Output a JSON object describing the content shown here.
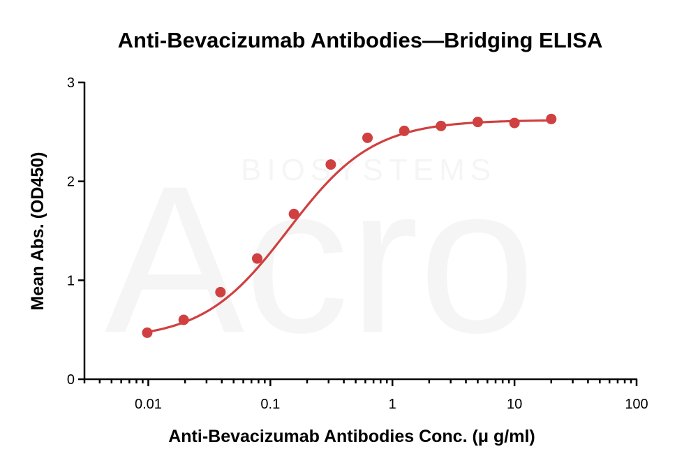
{
  "watermark": {
    "brand": "Acro",
    "subtitle": "BIOSYSTEMS"
  },
  "chart_data": {
    "type": "scatter",
    "title": "Anti-Bevacizumab Antibodies—Bridging ELISA",
    "xlabel": "Anti-Bevacizumab Antibodies Conc. (μ g/ml)",
    "ylabel": "Mean Abs. (OD450)",
    "xscale": "log",
    "xlim": [
      0.003,
      100
    ],
    "ylim": [
      0,
      3
    ],
    "x_ticks": [
      {
        "value": 0.01,
        "label": "0.01"
      },
      {
        "value": 0.1,
        "label": "0.1"
      },
      {
        "value": 1,
        "label": "1"
      },
      {
        "value": 10,
        "label": "10"
      },
      {
        "value": 100,
        "label": "100"
      }
    ],
    "y_ticks": [
      {
        "value": 0,
        "label": "0"
      },
      {
        "value": 1,
        "label": "1"
      },
      {
        "value": 2,
        "label": "2"
      },
      {
        "value": 3,
        "label": "3"
      }
    ],
    "color": "#d04040",
    "series": [
      {
        "x": [
          0.0098,
          0.0195,
          0.039,
          0.078,
          0.156,
          0.3125,
          0.625,
          1.25,
          2.5,
          5,
          10,
          20
        ],
        "y": [
          0.47,
          0.6,
          0.88,
          1.22,
          1.67,
          2.17,
          2.44,
          2.51,
          2.56,
          2.6,
          2.59,
          2.63
        ],
        "fit": "four-parameter logistic"
      }
    ],
    "grid": false,
    "legend": "none"
  }
}
